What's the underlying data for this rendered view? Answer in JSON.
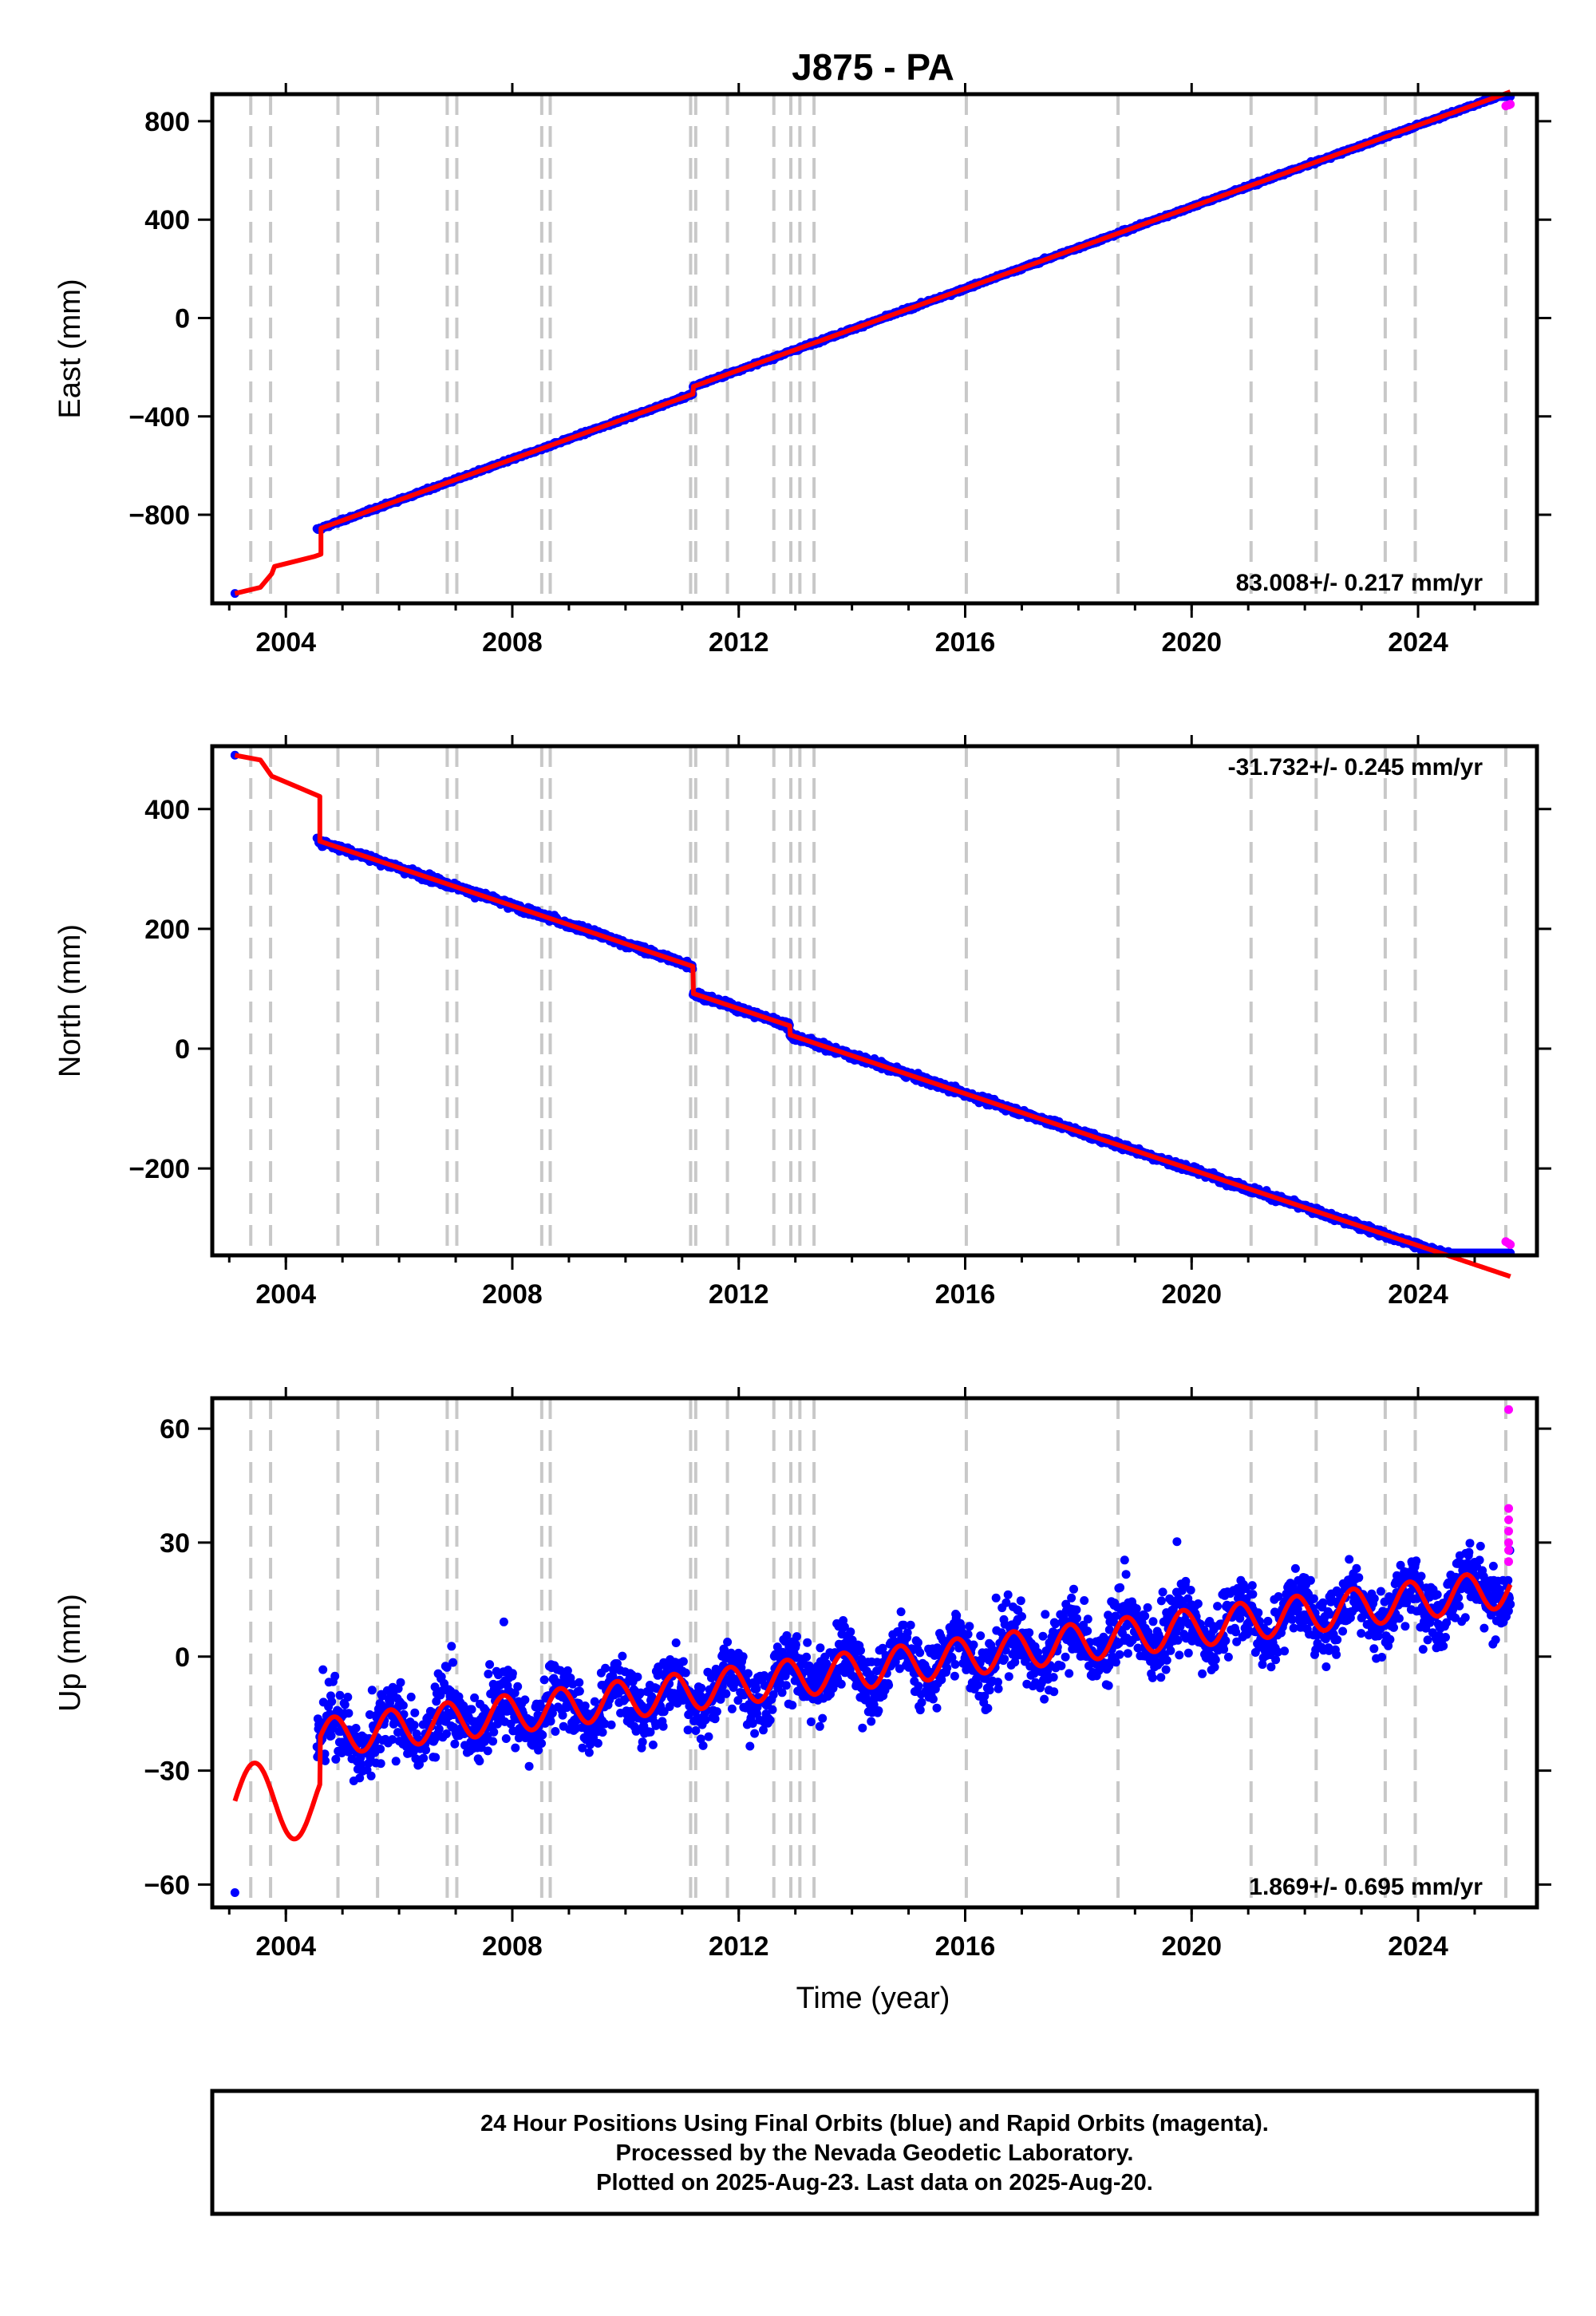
{
  "title": "J875 - PA",
  "xlabel": "Time (year)",
  "footer": {
    "line1": "24 Hour Positions Using Final Orbits (blue) and Rapid Orbits (magenta).",
    "line2": "Processed by the Nevada Geodetic Laboratory.",
    "line3": "Plotted on 2025-Aug-23. Last data on 2025-Aug-20."
  },
  "colors": {
    "final": "#0000ff",
    "rapid": "#ff00ff",
    "model": "#ff0000",
    "steps": "#c8c8c8",
    "frame": "#000000"
  },
  "chart_data": [
    {
      "type": "scatter",
      "component": "east",
      "ylabel": "East (mm)",
      "rate": "83.008+/- 0.217 mm/yr",
      "xlim": [
        2002.7,
        2026.1
      ],
      "ylim": [
        -1160,
        910
      ],
      "xticks": [
        2004,
        2008,
        2012,
        2016,
        2020,
        2024
      ],
      "yticks": [
        -800,
        -400,
        0,
        400,
        800
      ],
      "ytick_labels": [
        "−800",
        "−400",
        "0",
        "400",
        "800"
      ],
      "trend": {
        "t0": 2016,
        "y0": 90,
        "rate": 83.0,
        "noise": 4,
        "start": 2003.1,
        "end": 2025.63
      },
      "steps": [
        {
          "t": 2011.19,
          "dy": 30
        }
      ],
      "early_model": [
        [
          2003.1,
          -1120
        ],
        [
          2003.55,
          -1095
        ],
        [
          2003.75,
          -1040
        ],
        [
          2003.8,
          -1010
        ],
        [
          2004.5,
          -970
        ],
        [
          2004.62,
          -960
        ]
      ],
      "data_gap": [
        2003.1,
        2004.55
      ],
      "rapid_points": [
        [
          2025.55,
          862
        ],
        [
          2025.6,
          866
        ],
        [
          2025.63,
          869
        ]
      ],
      "series": [
        {
          "name": "Final Orbits (blue)",
          "role": "daily positions"
        },
        {
          "name": "Rapid Orbits (magenta)",
          "role": "latest positions"
        }
      ]
    },
    {
      "type": "scatter",
      "component": "north",
      "ylabel": "North (mm)",
      "rate": "-31.732+/- 0.245 mm/yr",
      "xlim": [
        2002.7,
        2026.1
      ],
      "ylim": [
        -345,
        505
      ],
      "xticks": [
        2004,
        2008,
        2012,
        2016,
        2020,
        2024
      ],
      "yticks": [
        -200,
        0,
        200,
        400
      ],
      "ytick_labels": [
        "−200",
        "0",
        "200",
        "400"
      ],
      "trend": {
        "t0": 2016,
        "y0": -15,
        "rate": -31.7,
        "noise": 4,
        "start": 2003.1,
        "end": 2025.63
      },
      "steps": [
        {
          "t": 2011.19,
          "dy": -45
        },
        {
          "t": 2012.9,
          "dy": -15
        }
      ],
      "early_model": [
        [
          2003.1,
          490
        ],
        [
          2003.55,
          482
        ],
        [
          2003.75,
          455
        ],
        [
          2004.5,
          425
        ],
        [
          2004.6,
          421
        ]
      ],
      "data_gap": [
        2003.1,
        2004.55
      ],
      "rapid_points": [
        [
          2025.55,
          -322
        ],
        [
          2025.6,
          -325
        ],
        [
          2025.63,
          -327
        ]
      ],
      "series": [
        {
          "name": "Final Orbits (blue)",
          "role": "daily positions"
        },
        {
          "name": "Rapid Orbits (magenta)",
          "role": "latest positions"
        }
      ]
    },
    {
      "type": "scatter",
      "component": "up",
      "ylabel": "Up (mm)",
      "rate": "1.869+/- 0.695 mm/yr",
      "xlim": [
        2002.7,
        2026.1
      ],
      "ylim": [
        -66,
        68
      ],
      "xticks": [
        2004,
        2008,
        2012,
        2016,
        2020,
        2024
      ],
      "yticks": [
        -60,
        -30,
        0,
        30,
        60
      ],
      "ytick_labels": [
        "−60",
        "−30",
        "0",
        "30",
        "60"
      ],
      "trend": {
        "t0": 2016,
        "y0": 0,
        "rate": 1.87,
        "noise": 6,
        "start": 2003.1,
        "end": 2025.63
      },
      "seasonal": {
        "amplitude": 5,
        "phase": 0.6
      },
      "steps": [],
      "data_gap": [
        2003.1,
        2004.55
      ],
      "rapid_points": [
        [
          2025.6,
          65
        ],
        [
          2025.6,
          39
        ],
        [
          2025.6,
          36
        ],
        [
          2025.6,
          33
        ],
        [
          2025.6,
          30
        ],
        [
          2025.6,
          28
        ],
        [
          2025.6,
          25
        ]
      ],
      "series": [
        {
          "name": "Final Orbits (blue)",
          "role": "daily positions"
        },
        {
          "name": "Rapid Orbits (magenta)",
          "role": "latest positions"
        }
      ]
    }
  ],
  "equipment_changes": [
    2003.38,
    2003.73,
    2004.92,
    2005.62,
    2006.85,
    2007.02,
    2008.52,
    2008.67,
    2011.15,
    2011.24,
    2011.8,
    2012.62,
    2012.92,
    2013.08,
    2013.33,
    2016.02,
    2018.7,
    2021.05,
    2022.2,
    2023.42,
    2023.95,
    2025.55
  ]
}
